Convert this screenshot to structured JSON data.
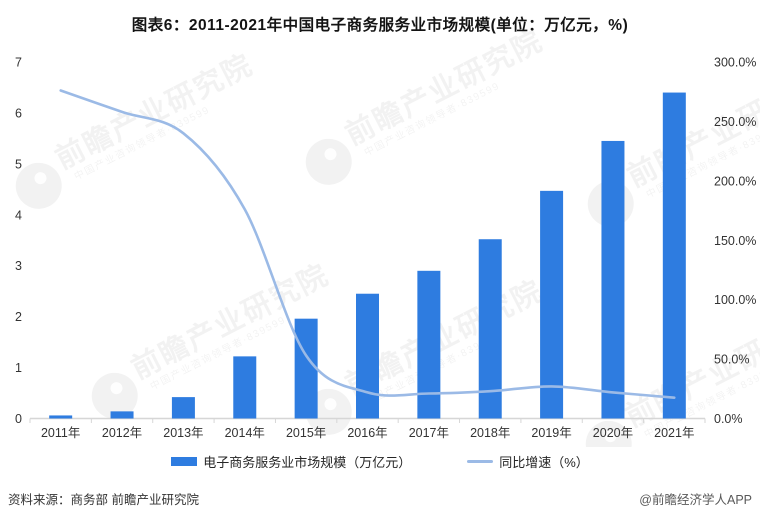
{
  "title": "图表6：2011-2021年中国电子商务服务业市场规模(单位：万亿元，%)",
  "chart_data": {
    "type": "bar",
    "subtype": "bar+line combo, dual axis",
    "categories": [
      "2011年",
      "2012年",
      "2013年",
      "2014年",
      "2015年",
      "2016年",
      "2017年",
      "2018年",
      "2019年",
      "2020年",
      "2021年"
    ],
    "series": [
      {
        "name": "电子商务服务业市场规模（万亿元）",
        "type": "bar",
        "axis": "left",
        "values": [
          0.06,
          0.14,
          0.42,
          1.22,
          1.96,
          2.45,
          2.9,
          3.52,
          4.47,
          5.45,
          6.4
        ]
      },
      {
        "name": "同比增速（%）",
        "type": "line",
        "axis": "right",
        "values": [
          276,
          258,
          240,
          176,
          53,
          22,
          21,
          23,
          27,
          22,
          17.5
        ]
      }
    ],
    "left_axis": {
      "min": 0,
      "max": 7,
      "step": 1,
      "ticks": [
        "0",
        "1",
        "2",
        "3",
        "4",
        "5",
        "6",
        "7"
      ]
    },
    "right_axis": {
      "min": 0,
      "max": 300,
      "step": 50,
      "ticks": [
        "0.0%",
        "50.0%",
        "100.0%",
        "150.0%",
        "200.0%",
        "250.0%",
        "300.0%"
      ]
    },
    "grid": false,
    "legend_position": "bottom",
    "title": "图表6：2011-2021年中国电子商务服务业市场规模(单位：万亿元，%)"
  },
  "legend": {
    "bar_label": "电子商务服务业市场规模（万亿元）",
    "line_label": "同比增速（%）"
  },
  "footer": {
    "source": "资料来源：商务部 前瞻产业研究院",
    "credit": "@前瞻经济学人APP"
  },
  "watermark": {
    "text": "前瞻产业研究院",
    "subtext": "中国产业咨询领导者·839599"
  },
  "colors": {
    "bar": "#2e7ce0",
    "line": "#9bbae6",
    "axis_line": "#d6d6d6",
    "tick_text": "#333333",
    "title_text": "#141414",
    "watermark": "#000000"
  }
}
